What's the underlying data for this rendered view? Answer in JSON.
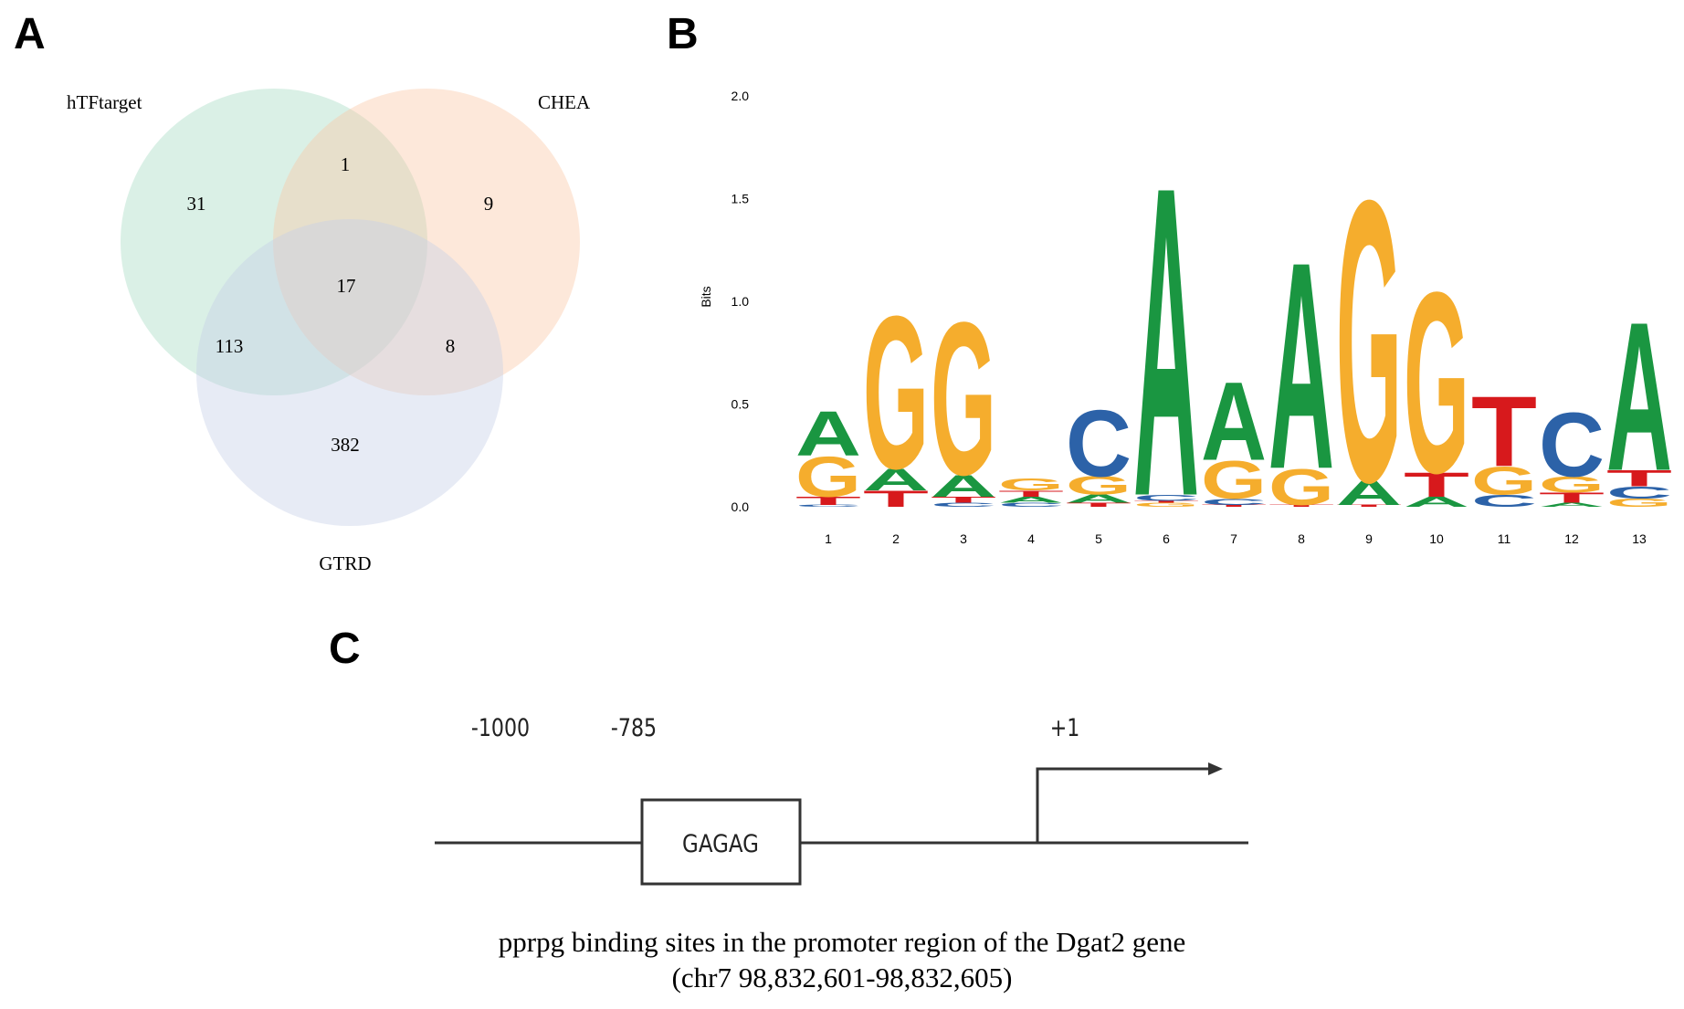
{
  "panels": {
    "a": {
      "letter": "A"
    },
    "b": {
      "letter": "B"
    },
    "c": {
      "letter": "C"
    }
  },
  "venn": {
    "sets": [
      {
        "name": "hTFtarget",
        "color": "#a8dcc4"
      },
      {
        "name": "CHEA",
        "color": "#fbc9a6"
      },
      {
        "name": "GTRD",
        "color": "#c5cfe6"
      }
    ],
    "counts": {
      "htf_only": "31",
      "chea_only": "9",
      "gtrd_only": "382",
      "htf_chea": "1",
      "htf_gtrd": "113",
      "chea_gtrd": "8",
      "all_three": "17"
    }
  },
  "chart_data": {
    "type": "sequence-logo",
    "ylabel": "Bits",
    "ylim": [
      0,
      2
    ],
    "yticks": [
      "0.0",
      "0.5",
      "1.0",
      "1.5",
      "2.0"
    ],
    "positions": [
      "1",
      "2",
      "3",
      "4",
      "5",
      "6",
      "7",
      "8",
      "9",
      "10",
      "11",
      "12",
      "13"
    ],
    "colors": {
      "A": "#1a9641",
      "G": "#f5ad2d",
      "T": "#d7191c",
      "C": "#2c62a8"
    },
    "columns": [
      [
        [
          "C",
          0.01
        ],
        [
          "T",
          0.04
        ],
        [
          "G",
          0.2
        ],
        [
          "A",
          0.22
        ]
      ],
      [
        [
          "T",
          0.08
        ],
        [
          "A",
          0.11
        ],
        [
          "G",
          0.76
        ]
      ],
      [
        [
          "C",
          0.02
        ],
        [
          "T",
          0.03
        ],
        [
          "A",
          0.11
        ],
        [
          "G",
          0.76
        ]
      ],
      [
        [
          "C",
          0.02
        ],
        [
          "A",
          0.03
        ],
        [
          "T",
          0.03
        ],
        [
          "G",
          0.06
        ]
      ],
      [
        [
          "T",
          0.02
        ],
        [
          "A",
          0.04
        ],
        [
          "G",
          0.09
        ],
        [
          "C",
          0.33
        ]
      ],
      [
        [
          "G",
          0.02
        ],
        [
          "T",
          0.01
        ],
        [
          "C",
          0.03
        ],
        [
          "A",
          1.54
        ]
      ],
      [
        [
          "T",
          0.01
        ],
        [
          "C",
          0.03
        ],
        [
          "G",
          0.19
        ],
        [
          "A",
          0.39
        ]
      ],
      [
        [
          "T",
          0.01
        ],
        [
          "G",
          0.18
        ],
        [
          "A",
          1.03
        ]
      ],
      [
        [
          "T",
          0.01
        ],
        [
          "A",
          0.12
        ],
        [
          "G",
          1.4
        ]
      ],
      [
        [
          "A",
          0.05
        ],
        [
          "T",
          0.12
        ],
        [
          "G",
          0.9
        ]
      ],
      [
        [
          "C",
          0.06
        ],
        [
          "G",
          0.14
        ],
        [
          "T",
          0.35
        ]
      ],
      [
        [
          "A",
          0.02
        ],
        [
          "T",
          0.05
        ],
        [
          "G",
          0.08
        ],
        [
          "C",
          0.32
        ]
      ],
      [
        [
          "G",
          0.04
        ],
        [
          "C",
          0.06
        ],
        [
          "T",
          0.08
        ],
        [
          "A",
          0.74
        ]
      ]
    ]
  },
  "promoter": {
    "pos_start": "-1000",
    "pos_site": "-785",
    "pos_tss": "+1",
    "motif": "GAGAG",
    "caption_line1": "pprpg binding sites in the promoter region of the Dgat2 gene",
    "caption_line2": "(chr7 98,832,601-98,832,605)"
  }
}
